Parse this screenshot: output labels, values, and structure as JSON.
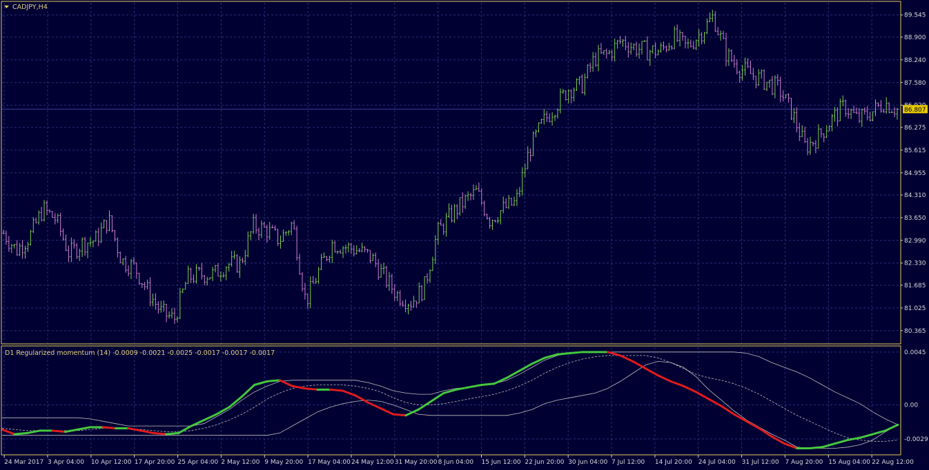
{
  "window": {
    "symbol_title": "CADJPY,H4",
    "indicator_title": "D1 Regularized momentum (14) -0.0009 -0.0021 -0.0025 -0.0017 -0.0017 -0.0017"
  },
  "colors": {
    "background": "#000033",
    "grid": "#2a2f7a",
    "frame": "#e6d15a",
    "bull_bar": "#7ccf4a",
    "bear_bar": "#d37fd3",
    "momentum_up": "#46c83c",
    "momentum_down": "#e01c1c",
    "band_line": "#c0c0c0",
    "price_tag_bg": "#e6c800"
  },
  "chart_data": [
    {
      "type": "ohlc-bar",
      "symbol": "CADJPY",
      "timeframe": "H4",
      "ylim": [
        80.0,
        89.9
      ],
      "y_ticks": [
        "89.545",
        "88.900",
        "88.240",
        "87.580",
        "86.920",
        "86.275",
        "85.615",
        "84.955",
        "84.310",
        "83.650",
        "82.990",
        "82.330",
        "81.685",
        "81.025",
        "80.365"
      ],
      "current_price": "86.807",
      "close_path": [
        [
          "24 Mar 2017",
          83.2
        ],
        [
          "27 Mar",
          82.7
        ],
        [
          "28 Mar",
          83.1
        ],
        [
          "31 Mar",
          83.9
        ],
        [
          "3 Apr 04:00",
          83.6
        ],
        [
          "4 Apr",
          82.6
        ],
        [
          "5 Apr",
          82.9
        ],
        [
          "7 Apr",
          83.0
        ],
        [
          "10 Apr 12:00",
          83.6
        ],
        [
          "12 Apr",
          82.4
        ],
        [
          "14 Apr",
          82.2
        ],
        [
          "17 Apr 20:00",
          81.5
        ],
        [
          "19 Apr",
          80.9
        ],
        [
          "21 Apr",
          80.7
        ],
        [
          "25 Apr 04:00",
          81.9
        ],
        [
          "27 Apr",
          82.0
        ],
        [
          "1 May",
          82.0
        ],
        [
          "2 May 12:00",
          82.3
        ],
        [
          "4 May",
          82.3
        ],
        [
          "8 May",
          83.4
        ],
        [
          "9 May 20:00",
          83.3
        ],
        [
          "11 May",
          83.0
        ],
        [
          "15 May",
          83.5
        ],
        [
          "17 May 04:00",
          81.2
        ],
        [
          "19 May",
          82.1
        ],
        [
          "22 May",
          82.9
        ],
        [
          "24 May 12:00",
          82.8
        ],
        [
          "26 May",
          82.7
        ],
        [
          "29 May",
          82.5
        ],
        [
          "31 May 20:00",
          81.9
        ],
        [
          "2 Jun",
          81.4
        ],
        [
          "6 Jun",
          81.2
        ],
        [
          "8 Jun 04:00",
          81.6
        ],
        [
          "9 Jun",
          83.2
        ],
        [
          "12 Jun",
          83.7
        ],
        [
          "15 Jun 12:00",
          84.1
        ],
        [
          "16 Jun",
          84.4
        ],
        [
          "19 Jun",
          83.6
        ],
        [
          "20 Jun",
          83.9
        ],
        [
          "22 Jun 20:00",
          84.1
        ],
        [
          "23 Jun",
          85.6
        ],
        [
          "26 Jun",
          86.4
        ],
        [
          "28 Jun",
          86.9
        ],
        [
          "30 Jun 04:00",
          87.4
        ],
        [
          "3 Jul",
          87.5
        ],
        [
          "5 Jul",
          88.3
        ],
        [
          "6 Jul",
          88.4
        ],
        [
          "7 Jul 12:00",
          88.8
        ],
        [
          "10 Jul",
          88.6
        ],
        [
          "12 Jul",
          88.5
        ],
        [
          "14 Jul 20:00",
          88.5
        ],
        [
          "17 Jul",
          88.9
        ],
        [
          "19 Jul",
          88.6
        ],
        [
          "21 Jul",
          89.0
        ],
        [
          "24 Jul 04:00",
          89.5
        ],
        [
          "25 Jul",
          88.4
        ],
        [
          "27 Jul",
          88.0
        ],
        [
          "28 Jul",
          87.8
        ],
        [
          "31 Jul 12:00",
          87.6
        ],
        [
          "2 Aug",
          87.4
        ],
        [
          "4 Aug",
          86.7
        ],
        [
          "7 Aug 20:00",
          85.7
        ],
        [
          "9 Aug",
          86.0
        ],
        [
          "11 Aug",
          86.5
        ],
        [
          "15 Aug 04:00",
          86.9
        ],
        [
          "16 Aug",
          86.5
        ],
        [
          "17 Aug",
          86.7
        ],
        [
          "21 Aug",
          87.0
        ],
        [
          "22 Aug 12:00",
          86.8
        ]
      ]
    },
    {
      "type": "line",
      "name": "D1 Regularized momentum (14)",
      "ylim": [
        -0.0042,
        0.0049
      ],
      "y_ticks": [
        "0.0045",
        "0.00",
        "-0.0029"
      ],
      "series": [
        {
          "role": "momentum",
          "values": [
            -0.0021,
            -0.0025,
            -0.0024,
            -0.0022,
            -0.0022,
            -0.0023,
            -0.0021,
            -0.0019,
            -0.0019,
            -0.002,
            -0.002,
            -0.0022,
            -0.0024,
            -0.0025,
            -0.0024,
            -0.0018,
            -0.0013,
            -0.0008,
            -0.0002,
            0.0007,
            0.0017,
            0.002,
            0.0021,
            0.0016,
            0.0014,
            0.0013,
            0.0013,
            0.0012,
            0.0008,
            0.0002,
            -0.0003,
            -0.0008,
            -0.0009,
            -0.0004,
            0.0003,
            0.001,
            0.0013,
            0.0015,
            0.0017,
            0.0018,
            0.0023,
            0.0029,
            0.0035,
            0.004,
            0.0043,
            0.0044,
            0.0045,
            0.0045,
            0.0045,
            0.0042,
            0.0037,
            0.0031,
            0.0025,
            0.002,
            0.0016,
            0.0011,
            0.0005,
            -0.0001,
            -0.0008,
            -0.0014,
            -0.002,
            -0.0027,
            -0.0033,
            -0.0037,
            -0.0037,
            -0.0036,
            -0.0033,
            -0.003,
            -0.0028,
            -0.0025,
            -0.0022,
            -0.0017
          ]
        },
        {
          "role": "band-upper",
          "values": [
            -0.0011,
            -0.0011,
            -0.0011,
            -0.0011,
            -0.0011,
            -0.0011,
            -0.0011,
            -0.0012,
            -0.0014,
            -0.0016,
            -0.0018,
            -0.0018,
            -0.0018,
            -0.0018,
            -0.0018,
            -0.0018,
            -0.0016,
            -0.001,
            -0.0004,
            0.0004,
            0.0011,
            0.0016,
            0.002,
            0.0021,
            0.0021,
            0.0021,
            0.0021,
            0.0021,
            0.0021,
            0.0019,
            0.0016,
            0.0012,
            0.001,
            0.0009,
            0.0009,
            0.0012,
            0.0014,
            0.0015,
            0.0017,
            0.0018,
            0.0021,
            0.0026,
            0.0032,
            0.0038,
            0.0042,
            0.0044,
            0.0045,
            0.0045,
            0.0045,
            0.0045,
            0.0045,
            0.0045,
            0.0045,
            0.0045,
            0.0045,
            0.0045,
            0.0045,
            0.0045,
            0.0045,
            0.0044,
            0.0041,
            0.0036,
            0.0032,
            0.0028,
            0.0023,
            0.0017,
            0.0011,
            0.0006,
            0.0001,
            -0.0006,
            -0.0012,
            -0.0017
          ]
        },
        {
          "role": "signal-dashed",
          "values": [
            -0.002,
            -0.0021,
            -0.0022,
            -0.0022,
            -0.0022,
            -0.0022,
            -0.0022,
            -0.0021,
            -0.002,
            -0.002,
            -0.002,
            -0.0021,
            -0.0022,
            -0.0023,
            -0.0023,
            -0.0022,
            -0.002,
            -0.0017,
            -0.0013,
            -0.0008,
            -0.0002,
            0.0005,
            0.001,
            0.0014,
            0.0016,
            0.0017,
            0.0017,
            0.0017,
            0.0016,
            0.0014,
            0.0011,
            0.0006,
            0.0002,
            0.0,
            0.0,
            0.0001,
            0.0003,
            0.0005,
            0.0007,
            0.0009,
            0.0012,
            0.0016,
            0.0021,
            0.0027,
            0.0032,
            0.0036,
            0.0039,
            0.0041,
            0.0042,
            0.0042,
            0.0042,
            0.0042,
            0.004,
            0.0036,
            0.0031,
            0.0026,
            0.0023,
            0.0021,
            0.0018,
            0.0014,
            0.0009,
            0.0003,
            -0.0003,
            -0.0009,
            -0.0014,
            -0.0019,
            -0.0024,
            -0.0028,
            -0.003,
            -0.0031,
            -0.0031,
            -0.003
          ]
        },
        {
          "role": "band-lower",
          "values": [
            -0.0026,
            -0.0026,
            -0.0026,
            -0.0026,
            -0.0026,
            -0.0026,
            -0.0026,
            -0.0026,
            -0.0026,
            -0.0026,
            -0.0026,
            -0.0026,
            -0.0026,
            -0.0026,
            -0.0026,
            -0.0026,
            -0.0026,
            -0.0026,
            -0.0026,
            -0.0026,
            -0.0026,
            -0.0026,
            -0.0024,
            -0.0018,
            -0.0012,
            -0.0006,
            -0.0002,
            0.0001,
            0.0003,
            0.0004,
            0.0003,
            0.0,
            -0.0004,
            -0.0008,
            -0.0009,
            -0.0009,
            -0.0009,
            -0.0009,
            -0.0009,
            -0.0009,
            -0.0009,
            -0.0007,
            -0.0004,
            0.0001,
            0.0004,
            0.0006,
            0.0008,
            0.001,
            0.0014,
            0.002,
            0.0027,
            0.0034,
            0.0037,
            0.0036,
            0.0032,
            0.0024,
            0.0013,
            0.0004,
            -0.0005,
            -0.0013,
            -0.0019,
            -0.0025,
            -0.003,
            -0.0036,
            -0.0037,
            -0.0037,
            -0.0037,
            -0.0036,
            -0.0034,
            -0.003,
            -0.0023,
            -0.0017
          ]
        }
      ]
    }
  ],
  "x_axis_labels": [
    "24 Mar 2017",
    "3 Apr 04:00",
    "10 Apr 12:00",
    "17 Apr 20:00",
    "25 Apr 04:00",
    "2 May 12:00",
    "9 May 20:00",
    "17 May 04:00",
    "24 May 12:00",
    "31 May 20:00",
    "8 Jun 04:00",
    "15 Jun 12:00",
    "22 Jun 20:00",
    "30 Jun 04:00",
    "7 Jul 12:00",
    "14 Jul 20:00",
    "24 Jul 04:00",
    "31 Jul 12:00",
    "7 Aug 20:00",
    "15 Aug 04:00",
    "22 Aug 12:00"
  ]
}
